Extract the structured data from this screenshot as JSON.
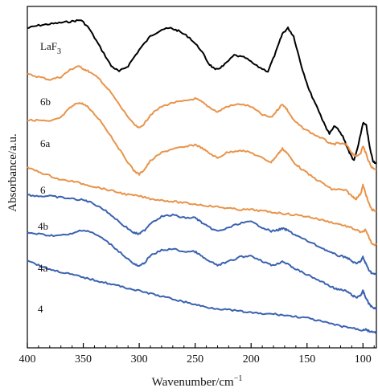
{
  "chart_data": {
    "type": "line",
    "title": "",
    "xlabel": "Wavenumber/cm",
    "xlabel_sup": "−1",
    "ylabel": "Absorbance/a.u.",
    "xlim": [
      400,
      88
    ],
    "x_reversed": true,
    "grid": false,
    "y_ticks_shown": false,
    "x_ticks": [
      400,
      350,
      300,
      250,
      200,
      150,
      100
    ],
    "colors": {
      "black": "#000000",
      "orange": "#E8944A",
      "blue": "#3A62B0"
    },
    "series": [
      {
        "name": "LaF",
        "name_sub": "3",
        "color": "#000000",
        "x": [
          400,
          390,
          380,
          370,
          360,
          352,
          345,
          335,
          325,
          318,
          310,
          300,
          290,
          280,
          272,
          265,
          255,
          245,
          238,
          232,
          225,
          215,
          205,
          195,
          185,
          178,
          172,
          167,
          162,
          155,
          148,
          140,
          135,
          130,
          125,
          118,
          112,
          108,
          104,
          100,
          97,
          94,
          91,
          88
        ],
        "y": [
          8.5,
          8.6,
          8.65,
          8.7,
          8.75,
          8.8,
          8.5,
          7.8,
          7.1,
          6.9,
          7.1,
          7.7,
          8.2,
          8.45,
          8.5,
          8.4,
          8.15,
          7.7,
          7.2,
          6.95,
          7.1,
          7.5,
          7.4,
          7.1,
          6.9,
          7.6,
          8.3,
          8.5,
          8.2,
          7.1,
          6.2,
          5.5,
          5.0,
          4.6,
          4.9,
          4.5,
          3.9,
          3.6,
          4.2,
          5.0,
          4.9,
          4.1,
          3.6,
          3.5
        ]
      },
      {
        "name": "6b",
        "color": "#E8944A",
        "x": [
          400,
          390,
          380,
          370,
          362,
          355,
          350,
          345,
          335,
          325,
          315,
          305,
          300,
          295,
          290,
          280,
          270,
          260,
          250,
          245,
          238,
          230,
          222,
          210,
          200,
          190,
          182,
          176,
          172,
          168,
          162,
          155,
          145,
          135,
          128,
          122,
          115,
          110,
          106,
          102,
          100,
          98,
          95,
          92,
          88
        ],
        "y": [
          6.8,
          6.7,
          6.6,
          6.7,
          6.95,
          7.1,
          7.0,
          6.9,
          6.6,
          6.1,
          5.5,
          4.95,
          4.8,
          5.0,
          5.3,
          5.6,
          5.75,
          5.8,
          5.9,
          5.8,
          5.6,
          5.4,
          5.6,
          5.7,
          5.6,
          5.3,
          5.2,
          5.5,
          5.7,
          5.5,
          5.1,
          4.85,
          4.6,
          4.4,
          4.2,
          4.25,
          4.2,
          3.9,
          3.75,
          3.9,
          4.15,
          3.95,
          3.6,
          3.35,
          3.3
        ]
      },
      {
        "name": "6a",
        "color": "#E8944A",
        "x": [
          400,
          390,
          380,
          370,
          362,
          355,
          350,
          345,
          335,
          325,
          315,
          305,
          300,
          295,
          290,
          280,
          270,
          260,
          250,
          245,
          238,
          230,
          222,
          210,
          200,
          190,
          182,
          176,
          172,
          168,
          162,
          155,
          145,
          135,
          128,
          122,
          115,
          110,
          106,
          102,
          100,
          98,
          95,
          92,
          88
        ],
        "y": [
          5.1,
          5.1,
          5.05,
          5.2,
          5.55,
          5.75,
          5.7,
          5.55,
          5.1,
          4.5,
          3.85,
          3.25,
          3.1,
          3.3,
          3.6,
          3.9,
          4.05,
          4.1,
          4.2,
          4.1,
          3.9,
          3.7,
          3.9,
          4.0,
          3.9,
          3.7,
          3.55,
          3.85,
          4.05,
          3.9,
          3.55,
          3.3,
          3.0,
          2.75,
          2.55,
          2.55,
          2.5,
          2.3,
          2.2,
          2.4,
          2.7,
          2.45,
          2.05,
          1.8,
          1.75
        ]
      },
      {
        "name": "6",
        "color": "#E8944A",
        "x": [
          400,
          390,
          380,
          370,
          360,
          350,
          340,
          330,
          320,
          310,
          300,
          290,
          280,
          270,
          260,
          250,
          240,
          230,
          220,
          210,
          200,
          190,
          180,
          170,
          160,
          150,
          140,
          130,
          120,
          112,
          106,
          101,
          98,
          95,
          92,
          88
        ],
        "y": [
          3.35,
          3.2,
          3.05,
          2.9,
          2.85,
          2.75,
          2.65,
          2.55,
          2.45,
          2.35,
          2.3,
          2.2,
          2.15,
          2.1,
          2.05,
          2.0,
          1.95,
          1.9,
          1.85,
          1.8,
          1.8,
          1.75,
          1.7,
          1.65,
          1.6,
          1.55,
          1.45,
          1.35,
          1.25,
          1.15,
          1.05,
          0.95,
          1.05,
          0.8,
          0.55,
          0.5
        ]
      },
      {
        "name": "4b",
        "color": "#3A62B0",
        "x": [
          400,
          390,
          380,
          370,
          360,
          350,
          345,
          335,
          325,
          315,
          305,
          300,
          295,
          290,
          280,
          270,
          260,
          250,
          245,
          238,
          230,
          222,
          210,
          200,
          190,
          182,
          176,
          172,
          168,
          162,
          155,
          145,
          135,
          128,
          122,
          115,
          110,
          106,
          102,
          100,
          98,
          95,
          92,
          88
        ],
        "y": [
          2.35,
          2.3,
          2.3,
          2.25,
          2.2,
          2.15,
          2.1,
          1.9,
          1.6,
          1.25,
          0.95,
          0.9,
          1.05,
          1.3,
          1.55,
          1.6,
          1.5,
          1.5,
          1.35,
          1.15,
          1.0,
          1.1,
          1.3,
          1.35,
          1.15,
          1.0,
          1.05,
          1.1,
          1.05,
          0.9,
          0.75,
          0.55,
          0.35,
          0.2,
          0.1,
          0.05,
          -0.1,
          -0.2,
          -0.1,
          0.05,
          -0.15,
          -0.4,
          -0.55,
          -0.6
        ]
      },
      {
        "name": "4a",
        "color": "#3A62B0",
        "x": [
          400,
          390,
          380,
          370,
          360,
          352,
          345,
          335,
          325,
          315,
          305,
          300,
          295,
          290,
          280,
          270,
          260,
          250,
          245,
          238,
          230,
          222,
          210,
          200,
          190,
          182,
          176,
          172,
          168,
          162,
          155,
          145,
          135,
          128,
          122,
          115,
          110,
          106,
          102,
          100,
          98,
          95,
          92,
          88
        ],
        "y": [
          0.95,
          0.9,
          0.85,
          0.85,
          0.9,
          1.05,
          1.0,
          0.8,
          0.5,
          0.15,
          -0.2,
          -0.3,
          -0.15,
          0.1,
          0.3,
          0.35,
          0.25,
          0.25,
          0.1,
          -0.1,
          -0.25,
          -0.15,
          0.05,
          0.1,
          -0.1,
          -0.25,
          -0.2,
          -0.1,
          -0.2,
          -0.35,
          -0.5,
          -0.7,
          -0.9,
          -1.05,
          -1.15,
          -1.2,
          -1.35,
          -1.45,
          -1.35,
          -1.2,
          -1.4,
          -1.65,
          -1.8,
          -1.85
        ]
      },
      {
        "name": "4",
        "color": "#3A62B0",
        "x": [
          400,
          390,
          380,
          370,
          360,
          350,
          340,
          330,
          320,
          310,
          300,
          290,
          280,
          270,
          260,
          250,
          240,
          230,
          220,
          210,
          200,
          190,
          180,
          170,
          160,
          150,
          140,
          130,
          120,
          112,
          106,
          101,
          98,
          95,
          92,
          88
        ],
        "y": [
          -0.05,
          -0.25,
          -0.4,
          -0.5,
          -0.6,
          -0.7,
          -0.8,
          -0.9,
          -1.0,
          -1.1,
          -1.2,
          -1.3,
          -1.4,
          -1.5,
          -1.6,
          -1.7,
          -1.8,
          -1.85,
          -1.9,
          -1.95,
          -2.0,
          -2.05,
          -2.05,
          -2.1,
          -2.15,
          -2.2,
          -2.3,
          -2.4,
          -2.5,
          -2.55,
          -2.6,
          -2.65,
          -2.62,
          -2.68,
          -2.72,
          -2.75
        ]
      }
    ]
  }
}
